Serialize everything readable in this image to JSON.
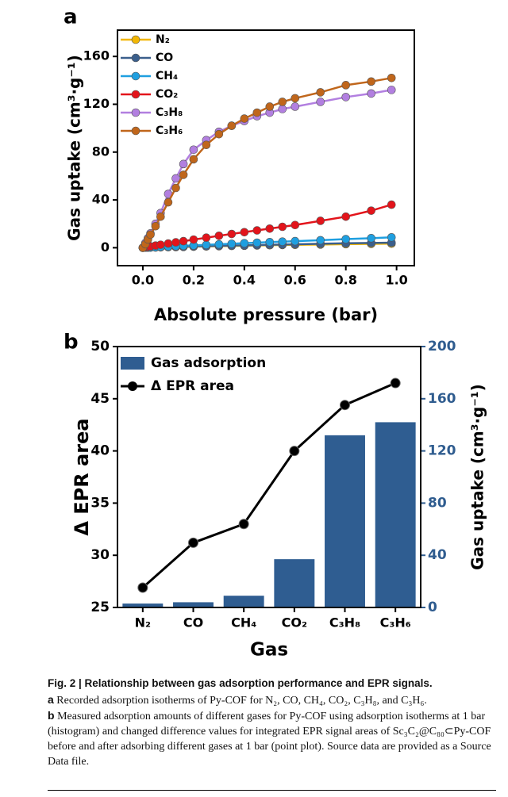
{
  "chart_data": [
    {
      "type": "line",
      "label": "a",
      "xlabel": "Absolute pressure (bar)",
      "ylabel": "Gas uptake (cm³·g⁻¹)",
      "xlim": [
        -0.1,
        1.07
      ],
      "ylim": [
        -15,
        182
      ],
      "xticks": [
        {
          "value": 0,
          "label": "0.0"
        },
        0.2,
        0.4,
        0.6,
        0.8,
        {
          "value": 1,
          "label": "1.0"
        }
      ],
      "yticks": [
        0,
        40,
        80,
        120,
        160
      ],
      "legend": "top-left",
      "x": [
        0,
        0.01,
        0.02,
        0.03,
        0.05,
        0.07,
        0.1,
        0.13,
        0.16,
        0.2,
        0.25,
        0.3,
        0.35,
        0.4,
        0.45,
        0.5,
        0.55,
        0.6,
        0.7,
        0.8,
        0.9,
        0.98
      ],
      "series": [
        {
          "name": "N₂",
          "color": "#f2b705",
          "values": [
            0,
            0.1,
            0.1,
            0.2,
            0.3,
            0.4,
            0.5,
            0.6,
            0.7,
            0.9,
            1.1,
            1.3,
            1.5,
            1.7,
            1.9,
            2.1,
            2.3,
            2.4,
            2.7,
            3.0,
            3.2,
            3.4
          ]
        },
        {
          "name": "CO",
          "color": "#3b5f8c",
          "values": [
            0,
            0.1,
            0.2,
            0.2,
            0.3,
            0.4,
            0.6,
            0.7,
            0.9,
            1.1,
            1.3,
            1.6,
            1.8,
            2.0,
            2.2,
            2.5,
            2.7,
            2.9,
            3.3,
            3.7,
            4.0,
            4.2
          ]
        },
        {
          "name": "CH₄",
          "color": "#1f9fe0",
          "values": [
            0,
            0.1,
            0.2,
            0.3,
            0.5,
            0.7,
            1,
            1.3,
            1.6,
            2,
            2.4,
            2.9,
            3.3,
            3.8,
            4.2,
            4.7,
            5.1,
            5.5,
            6.3,
            7.2,
            8,
            8.7
          ]
        },
        {
          "name": "CO₂",
          "color": "#e3141b",
          "values": [
            0,
            0.4,
            0.8,
            1.1,
            1.8,
            2.5,
            3.5,
            4.5,
            5.5,
            6.8,
            8.4,
            10,
            11.5,
            13,
            14.5,
            16,
            17.5,
            19,
            22.5,
            26,
            31,
            36
          ]
        },
        {
          "name": "C₃H₈",
          "color": "#b27fe0",
          "values": [
            0,
            4,
            8,
            12,
            20,
            29,
            45,
            58,
            70,
            82,
            90,
            97,
            102,
            106,
            110,
            113,
            116,
            118,
            122,
            126,
            129,
            132
          ]
        },
        {
          "name": "C₃H₆",
          "color": "#c0661b",
          "values": [
            0,
            3,
            7,
            11,
            18,
            26,
            38,
            50,
            61,
            74,
            86,
            95,
            102,
            108,
            113,
            118,
            122,
            125,
            130,
            136,
            139,
            142
          ]
        }
      ]
    },
    {
      "type": "bar",
      "label": "b",
      "xlabel": "Gas",
      "ylabel": "Δ EPR area",
      "y2label": "Gas uptake (cm³·g⁻¹)",
      "y2color": "#2f5c8f",
      "legend": "top-left",
      "categories": [
        "N₂",
        "CO",
        "CH₄",
        "CO₂",
        "C₃H₈",
        "C₃H₆"
      ],
      "ylim": [
        25,
        50
      ],
      "yticks": [
        25,
        30,
        35,
        40,
        45,
        50
      ],
      "y2lim": [
        0,
        200
      ],
      "y2ticks": [
        0,
        40,
        80,
        120,
        160,
        200
      ],
      "series": [
        {
          "name": "Gas adsorption",
          "type": "bar",
          "axis": "y2",
          "color": "#2f5d91",
          "values": [
            3,
            4,
            9,
            37,
            132,
            142
          ]
        },
        {
          "name": "Δ EPR area",
          "type": "line",
          "color": "#000000",
          "values": [
            26.9,
            31.2,
            33.0,
            40.0,
            44.4,
            46.5
          ]
        }
      ]
    }
  ],
  "caption": {
    "title": "Fig. 2 | Relationship between gas adsorption performance and EPR signals.",
    "items": [
      {
        "label": "a",
        "text": "Recorded adsorption isotherms of Py-COF for N₂, CO, CH₄, CO₂, C₃H₈, and C₃H₆."
      },
      {
        "label": "b",
        "text": "Measured adsorption amounts of different gases for Py-COF using adsorption isotherms at 1 bar (histogram) and changed difference values for integrated EPR signal areas of Sc₃C₂@C₈₀⊂Py-COF before and after adsorbing different gases at 1 bar (point plot). Source data are provided as a Source Data file."
      }
    ]
  }
}
